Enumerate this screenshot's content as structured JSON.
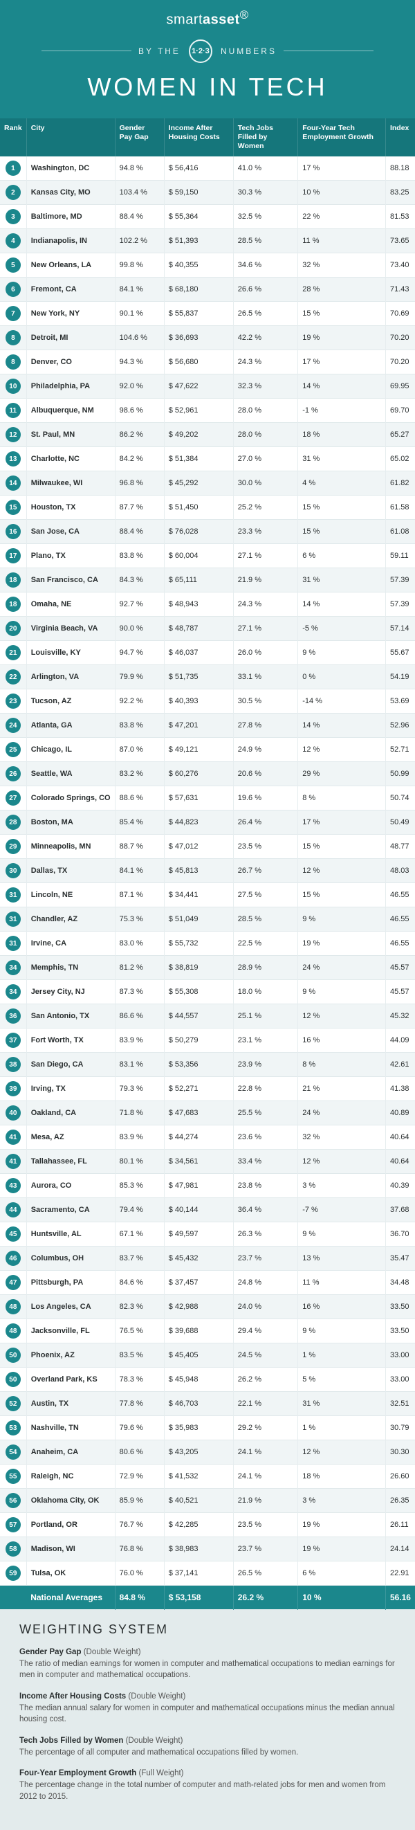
{
  "brand": {
    "logo_a": "smart",
    "logo_b": "asset",
    "registered": "®"
  },
  "header": {
    "by": "BY THE",
    "numbers": "NUMBERS",
    "circle": "1·2·3",
    "title": "WOMEN IN TECH",
    "bg_color": "#1b878c",
    "accent_dark": "#0f5a5e"
  },
  "columns": [
    "Rank",
    "City",
    "Gender Pay Gap",
    "Income After Housing Costs",
    "Tech Jobs Filled by Women",
    "Four-Year Tech Employment Growth",
    "Index"
  ],
  "rows": [
    {
      "rank": "1",
      "city": "Washington, DC",
      "gap": "94.8 %",
      "income": "$  56,416",
      "pct_women": "41.0 %",
      "growth": "17 %",
      "index": "88.18"
    },
    {
      "rank": "2",
      "city": "Kansas City, MO",
      "gap": "103.4 %",
      "income": "$  59,150",
      "pct_women": "30.3 %",
      "growth": "10 %",
      "index": "83.25"
    },
    {
      "rank": "3",
      "city": "Baltimore, MD",
      "gap": "88.4 %",
      "income": "$  55,364",
      "pct_women": "32.5 %",
      "growth": "22 %",
      "index": "81.53"
    },
    {
      "rank": "4",
      "city": "Indianapolis, IN",
      "gap": "102.2 %",
      "income": "$  51,393",
      "pct_women": "28.5 %",
      "growth": "11 %",
      "index": "73.65"
    },
    {
      "rank": "5",
      "city": "New Orleans, LA",
      "gap": "99.8 %",
      "income": "$  40,355",
      "pct_women": "34.6 %",
      "growth": "32 %",
      "index": "73.40"
    },
    {
      "rank": "6",
      "city": "Fremont, CA",
      "gap": "84.1 %",
      "income": "$  68,180",
      "pct_women": "26.6 %",
      "growth": "28 %",
      "index": "71.43"
    },
    {
      "rank": "7",
      "city": "New York, NY",
      "gap": "90.1 %",
      "income": "$  55,837",
      "pct_women": "26.5 %",
      "growth": "15 %",
      "index": "70.69"
    },
    {
      "rank": "8",
      "city": "Detroit, MI",
      "gap": "104.6 %",
      "income": "$  36,693",
      "pct_women": "42.2 %",
      "growth": "19 %",
      "index": "70.20"
    },
    {
      "rank": "8",
      "city": "Denver, CO",
      "gap": "94.3 %",
      "income": "$  56,680",
      "pct_women": "24.3 %",
      "growth": "17 %",
      "index": "70.20"
    },
    {
      "rank": "10",
      "city": "Philadelphia, PA",
      "gap": "92.0 %",
      "income": "$  47,622",
      "pct_women": "32.3 %",
      "growth": "14 %",
      "index": "69.95"
    },
    {
      "rank": "11",
      "city": "Albuquerque, NM",
      "gap": "98.6 %",
      "income": "$  52,961",
      "pct_women": "28.0 %",
      "growth": "-1 %",
      "index": "69.70"
    },
    {
      "rank": "12",
      "city": "St. Paul, MN",
      "gap": "86.2 %",
      "income": "$  49,202",
      "pct_women": "28.0 %",
      "growth": "18 %",
      "index": "65.27"
    },
    {
      "rank": "13",
      "city": "Charlotte, NC",
      "gap": "84.2 %",
      "income": "$  51,384",
      "pct_women": "27.0 %",
      "growth": "31 %",
      "index": "65.02"
    },
    {
      "rank": "14",
      "city": "Milwaukee, WI",
      "gap": "96.8 %",
      "income": "$  45,292",
      "pct_women": "30.0 %",
      "growth": "4 %",
      "index": "61.82"
    },
    {
      "rank": "15",
      "city": "Houston, TX",
      "gap": "87.7 %",
      "income": "$  51,450",
      "pct_women": "25.2 %",
      "growth": "15 %",
      "index": "61.58"
    },
    {
      "rank": "16",
      "city": "San Jose, CA",
      "gap": "88.4 %",
      "income": "$  76,028",
      "pct_women": "23.3 %",
      "growth": "15 %",
      "index": "61.08"
    },
    {
      "rank": "17",
      "city": "Plano, TX",
      "gap": "83.8 %",
      "income": "$  60,004",
      "pct_women": "27.1 %",
      "growth": "6 %",
      "index": "59.11"
    },
    {
      "rank": "18",
      "city": "San Francisco, CA",
      "gap": "84.3 %",
      "income": "$   65,111",
      "pct_women": "21.9 %",
      "growth": "31 %",
      "index": "57.39"
    },
    {
      "rank": "18",
      "city": "Omaha, NE",
      "gap": "92.7 %",
      "income": "$  48,943",
      "pct_women": "24.3 %",
      "growth": "14 %",
      "index": "57.39"
    },
    {
      "rank": "20",
      "city": "Virginia Beach, VA",
      "gap": "90.0 %",
      "income": "$  48,787",
      "pct_women": "27.1 %",
      "growth": "-5 %",
      "index": "57.14"
    },
    {
      "rank": "21",
      "city": "Louisville, KY",
      "gap": "94.7 %",
      "income": "$  46,037",
      "pct_women": "26.0 %",
      "growth": "9 %",
      "index": "55.67"
    },
    {
      "rank": "22",
      "city": "Arlington, VA",
      "gap": "79.9 %",
      "income": "$   51,735",
      "pct_women": "33.1 %",
      "growth": "0 %",
      "index": "54.19"
    },
    {
      "rank": "23",
      "city": "Tucson, AZ",
      "gap": "92.2 %",
      "income": "$  40,393",
      "pct_women": "30.5 %",
      "growth": "-14 %",
      "index": "53.69"
    },
    {
      "rank": "24",
      "city": "Atlanta, GA",
      "gap": "83.8 %",
      "income": "$   47,201",
      "pct_women": "27.8 %",
      "growth": "14 %",
      "index": "52.96"
    },
    {
      "rank": "25",
      "city": "Chicago, IL",
      "gap": "87.0 %",
      "income": "$   49,121",
      "pct_women": "24.9 %",
      "growth": "12 %",
      "index": "52.71"
    },
    {
      "rank": "26",
      "city": "Seattle, WA",
      "gap": "83.2 %",
      "income": "$  60,276",
      "pct_women": "20.6 %",
      "growth": "29 %",
      "index": "50.99"
    },
    {
      "rank": "27",
      "city": "Colorado Springs, CO",
      "gap": "88.6 %",
      "income": "$   57,631",
      "pct_women": "19.6 %",
      "growth": "8 %",
      "index": "50.74"
    },
    {
      "rank": "28",
      "city": "Boston, MA",
      "gap": "85.4 %",
      "income": "$  44,823",
      "pct_women": "26.4 %",
      "growth": "17 %",
      "index": "50.49"
    },
    {
      "rank": "29",
      "city": "Minneapolis, MN",
      "gap": "88.7 %",
      "income": "$   47,012",
      "pct_women": "23.5 %",
      "growth": "15 %",
      "index": "48.77"
    },
    {
      "rank": "30",
      "city": "Dallas, TX",
      "gap": "84.1 %",
      "income": "$   45,813",
      "pct_women": "26.7 %",
      "growth": "12 %",
      "index": "48.03"
    },
    {
      "rank": "31",
      "city": "Lincoln, NE",
      "gap": "87.1 %",
      "income": "$   34,441",
      "pct_women": "27.5 %",
      "growth": "15 %",
      "index": "46.55"
    },
    {
      "rank": "31",
      "city": "Chandler, AZ",
      "gap": "75.3 %",
      "income": "$   51,049",
      "pct_women": "28.5 %",
      "growth": "9 %",
      "index": "46.55"
    },
    {
      "rank": "31",
      "city": "Irvine, CA",
      "gap": "83.0 %",
      "income": "$  55,732",
      "pct_women": "22.5 %",
      "growth": "19 %",
      "index": "46.55"
    },
    {
      "rank": "34",
      "city": "Memphis, TN",
      "gap": "81.2 %",
      "income": "$   38,819",
      "pct_women": "28.9 %",
      "growth": "24 %",
      "index": "45.57"
    },
    {
      "rank": "34",
      "city": "Jersey City, NJ",
      "gap": "87.3 %",
      "income": "$  55,308",
      "pct_women": "18.0 %",
      "growth": "9 %",
      "index": "45.57"
    },
    {
      "rank": "36",
      "city": "San Antonio, TX",
      "gap": "86.6 %",
      "income": "$  44,557",
      "pct_women": "25.1 %",
      "growth": "12 %",
      "index": "45.32"
    },
    {
      "rank": "37",
      "city": "Fort Worth, TX",
      "gap": "83.9 %",
      "income": "$  50,279",
      "pct_women": "23.1 %",
      "growth": "16 %",
      "index": "44.09"
    },
    {
      "rank": "38",
      "city": "San Diego, CA",
      "gap": "83.1 %",
      "income": "$  53,356",
      "pct_women": "23.9 %",
      "growth": "8 %",
      "index": "42.61"
    },
    {
      "rank": "39",
      "city": "Irving, TX",
      "gap": "79.3 %",
      "income": "$   52,271",
      "pct_women": "22.8 %",
      "growth": "21 %",
      "index": "41.38"
    },
    {
      "rank": "40",
      "city": "Oakland, CA",
      "gap": "71.8 %",
      "income": "$  47,683",
      "pct_women": "25.5 %",
      "growth": "24 %",
      "index": "40.89"
    },
    {
      "rank": "41",
      "city": "Mesa, AZ",
      "gap": "83.9 %",
      "income": "$  44,274",
      "pct_women": "23.6 %",
      "growth": "32 %",
      "index": "40.64"
    },
    {
      "rank": "41",
      "city": "Tallahassee, FL",
      "gap": "80.1 %",
      "income": "$   34,561",
      "pct_women": "33.4 %",
      "growth": "12 %",
      "index": "40.64"
    },
    {
      "rank": "43",
      "city": "Aurora, CO",
      "gap": "85.3 %",
      "income": "$   47,981",
      "pct_women": "23.8 %",
      "growth": "3 %",
      "index": "40.39"
    },
    {
      "rank": "44",
      "city": "Sacramento, CA",
      "gap": "79.4 %",
      "income": "$   40,144",
      "pct_women": "36.4 %",
      "growth": "-7 %",
      "index": "37.68"
    },
    {
      "rank": "45",
      "city": "Huntsville, AL",
      "gap": "67.1 %",
      "income": "$  49,597",
      "pct_women": "26.3 %",
      "growth": "9 %",
      "index": "36.70"
    },
    {
      "rank": "46",
      "city": "Columbus, OH",
      "gap": "83.7 %",
      "income": "$  45,432",
      "pct_women": "23.7 %",
      "growth": "13 %",
      "index": "35.47"
    },
    {
      "rank": "47",
      "city": "Pittsburgh, PA",
      "gap": "84.6 %",
      "income": "$  37,457",
      "pct_women": "24.8 %",
      "growth": "11 %",
      "index": "34.48"
    },
    {
      "rank": "48",
      "city": "Los Angeles, CA",
      "gap": "82.3 %",
      "income": "$  42,988",
      "pct_women": "24.0 %",
      "growth": "16 %",
      "index": "33.50"
    },
    {
      "rank": "48",
      "city": "Jacksonville, FL",
      "gap": "76.5 %",
      "income": "$  39,688",
      "pct_women": "29.4 %",
      "growth": "9 %",
      "index": "33.50"
    },
    {
      "rank": "50",
      "city": "Phoenix, AZ",
      "gap": "83.5 %",
      "income": "$  45,405",
      "pct_women": "24.5 %",
      "growth": "1 %",
      "index": "33.00"
    },
    {
      "rank": "50",
      "city": "Overland Park, KS",
      "gap": "78.3 %",
      "income": "$  45,948",
      "pct_women": "26.2 %",
      "growth": "5 %",
      "index": "33.00"
    },
    {
      "rank": "52",
      "city": "Austin, TX",
      "gap": "77.8 %",
      "income": "$  46,703",
      "pct_women": "22.1 %",
      "growth": "31 %",
      "index": "32.51"
    },
    {
      "rank": "53",
      "city": "Nashville, TN",
      "gap": "79.6 %",
      "income": "$  35,983",
      "pct_women": "29.2 %",
      "growth": "1 %",
      "index": "30.79"
    },
    {
      "rank": "54",
      "city": "Anaheim, CA",
      "gap": "80.6 %",
      "income": "$  43,205",
      "pct_women": "24.1 %",
      "growth": "12 %",
      "index": "30.30"
    },
    {
      "rank": "55",
      "city": "Raleigh, NC",
      "gap": "72.9 %",
      "income": "$   41,532",
      "pct_women": "24.1 %",
      "growth": "18 %",
      "index": "26.60"
    },
    {
      "rank": "56",
      "city": "Oklahoma City, OK",
      "gap": "85.9 %",
      "income": "$   40,521",
      "pct_women": "21.9 %",
      "growth": "3 %",
      "index": "26.35"
    },
    {
      "rank": "57",
      "city": "Portland, OR",
      "gap": "76.7 %",
      "income": "$  42,285",
      "pct_women": "23.5 %",
      "growth": "19 %",
      "index": "26.11"
    },
    {
      "rank": "58",
      "city": "Madison, WI",
      "gap": "76.8 %",
      "income": "$  38,983",
      "pct_women": "23.7 %",
      "growth": "19 %",
      "index": "24.14"
    },
    {
      "rank": "59",
      "city": "Tulsa, OK",
      "gap": "76.0 %",
      "income": "$    37,141",
      "pct_women": "26.5 %",
      "growth": "6 %",
      "index": "22.91"
    }
  ],
  "national": {
    "label": "National Averages",
    "gap": "84.8 %",
    "income": "$  53,158",
    "pct_women": "26.2 %",
    "growth": "10 %",
    "index": "56.16"
  },
  "footer": {
    "title": "WEIGHTING SYSTEM",
    "items": [
      {
        "name": "Gender Pay Gap",
        "wt": "(Double Weight)",
        "desc": "The ratio of median earnings for women in computer and mathematical occupations to median earnings for men in computer and mathematical occupations."
      },
      {
        "name": "Income After Housing Costs",
        "wt": "(Double Weight)",
        "desc": "The median annual salary for women in computer and mathematical occupations minus the median annual housing cost."
      },
      {
        "name": "Tech Jobs Filled by Women",
        "wt": "(Double Weight)",
        "desc": "The percentage of all computer and mathematical occupations filled by women."
      },
      {
        "name": "Four-Year Employment Growth",
        "wt": "(Full Weight)",
        "desc": "The percentage change in the total number of computer and math-related jobs for men and women from 2012 to 2015."
      }
    ]
  },
  "style": {
    "header_bg": "#1b878c",
    "thead_bg": "#15767b",
    "badge_bg": "#1b878c",
    "nat_bg": "#1b878c",
    "row_even": "#f0f5f6",
    "row_border": "#e0e9eb"
  }
}
